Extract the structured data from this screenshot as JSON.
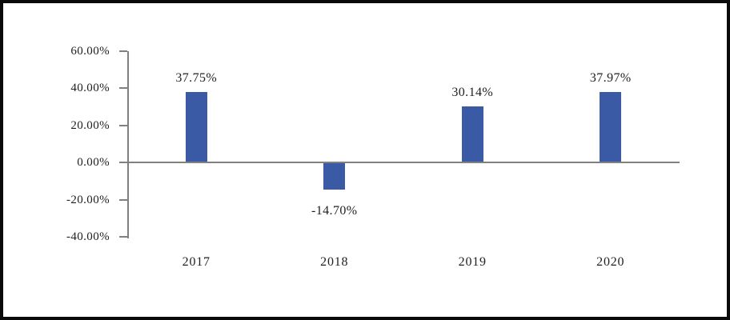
{
  "chart_data": {
    "type": "bar",
    "title": "",
    "xlabel": "",
    "ylabel": "",
    "categories": [
      "2017",
      "2018",
      "2019",
      "2020"
    ],
    "values": [
      37.75,
      -14.7,
      30.14,
      37.97
    ],
    "data_labels": [
      "37.75%",
      "-14.70%",
      "30.14%",
      "37.97%"
    ],
    "y_ticks": [
      {
        "label": "60.00%",
        "value": 60
      },
      {
        "label": "40.00%",
        "value": 40
      },
      {
        "label": "20.00%",
        "value": 20
      },
      {
        "label": "0.00%",
        "value": 0
      },
      {
        "label": "-20.00%",
        "value": -20
      },
      {
        "label": "-40.00%",
        "value": -40
      }
    ],
    "ylim": [
      -40,
      60
    ],
    "grid": false,
    "legend": false,
    "bar_color": "#3B5AA5",
    "axis_color": "#808080",
    "text_color": "#1F1F1F",
    "frame_color": "#0A0A0A"
  }
}
